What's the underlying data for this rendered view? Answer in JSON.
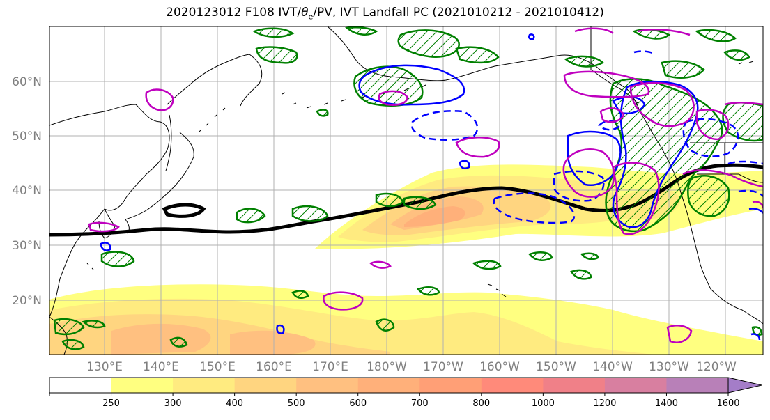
{
  "title": {
    "prefix": "2020123012 F108 IVT/",
    "theta_symbol": "θ",
    "theta_sub": "e",
    "suffix": "/PV, IVT Landfall PC (2021010212 - 2021010412)"
  },
  "map": {
    "lat_labels": [
      "60°N",
      "50°N",
      "40°N",
      "30°N",
      "20°N"
    ],
    "lon_labels": [
      "130°E",
      "140°E",
      "150°E",
      "160°E",
      "170°E",
      "180°W",
      "170°W",
      "160°W",
      "150°W",
      "140°W",
      "130°W",
      "120°W"
    ],
    "grid": true,
    "colors": {
      "ivt_contour_green": "#008000",
      "pv_contour_blue": "#0000ff",
      "theta_contour_magenta": "#bf00bf",
      "landfall_pc_line": "#000000",
      "coastline": "#000000"
    }
  },
  "colorbar": {
    "ticks": [
      "250",
      "300",
      "400",
      "500",
      "600",
      "700",
      "800",
      "1000",
      "1200",
      "1400",
      "1600"
    ],
    "colors": [
      "#ffffff",
      "#ffff80",
      "#ffeb80",
      "#ffd580",
      "#ffc080",
      "#ffb07a",
      "#ff9f76",
      "#ff8a7a",
      "#f08088",
      "#d87fa0",
      "#b880b8",
      "#a47dc8"
    ]
  }
}
